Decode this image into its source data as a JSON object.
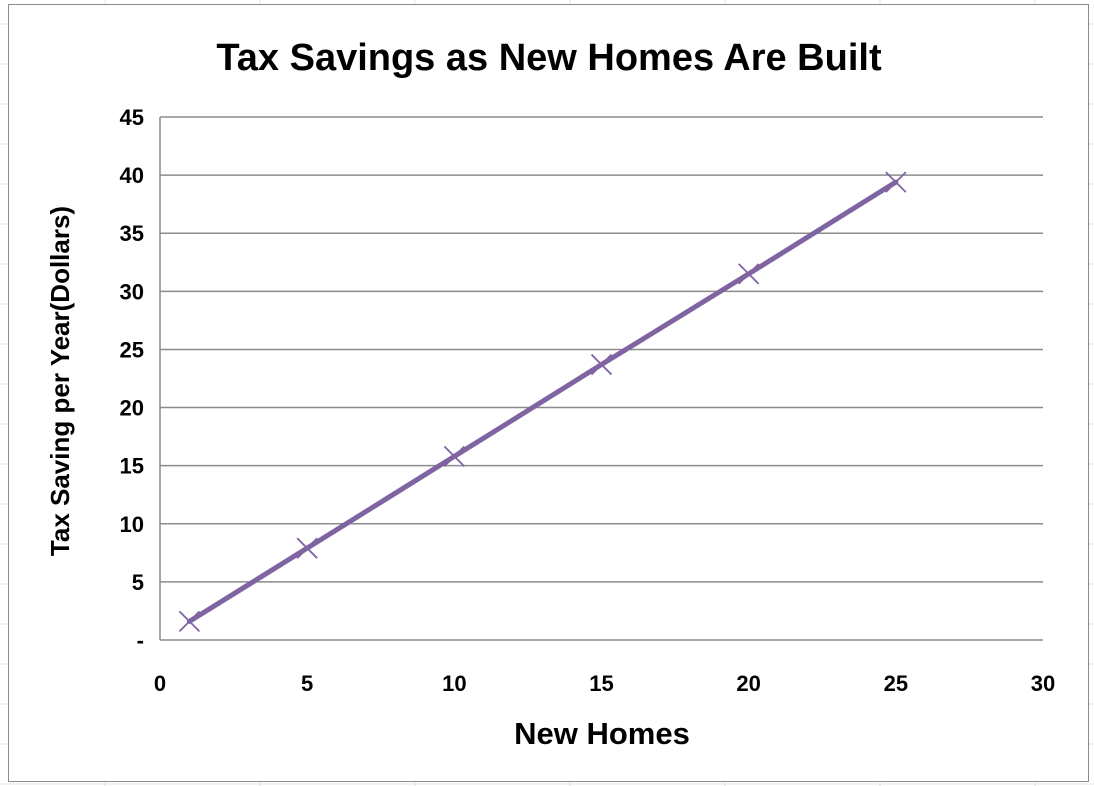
{
  "chart_data": {
    "type": "line",
    "title": "Tax Savings as New Homes Are Built",
    "xlabel": "New Homes",
    "ylabel": "Tax Saving per Year(Dollars)",
    "xlim": [
      0,
      30
    ],
    "ylim": [
      0,
      45
    ],
    "x_ticks": [
      "0",
      "5",
      "10",
      "15",
      "20",
      "25",
      "30"
    ],
    "y_ticks": [
      "-",
      "5",
      "10",
      "15",
      "20",
      "25",
      "30",
      "35",
      "40",
      "45"
    ],
    "grid": "horizontal",
    "marker": "x",
    "series": [
      {
        "x": [
          1,
          5,
          10,
          15,
          20,
          25
        ],
        "y": [
          1.6,
          7.9,
          15.8,
          23.7,
          31.5,
          39.4
        ],
        "color": "#8064a2"
      }
    ]
  }
}
